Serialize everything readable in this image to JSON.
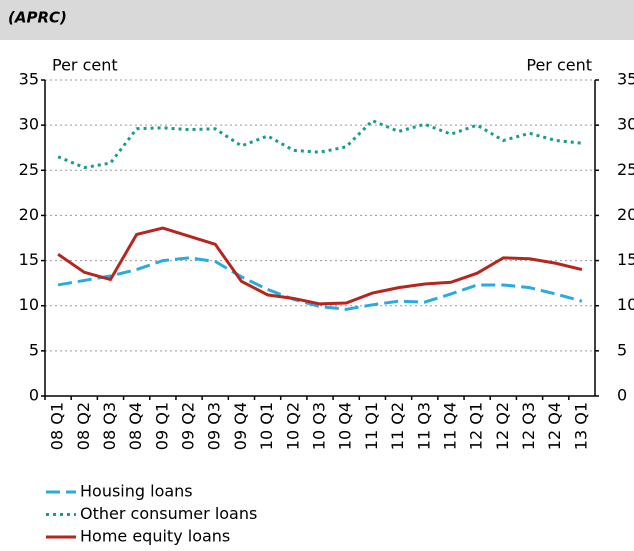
{
  "chart_data": {
    "type": "line",
    "subtitle": "(APRC)",
    "y_label": "Per cent",
    "y2_label": "Per cent",
    "categories": [
      "08 Q1",
      "08 Q2",
      "08 Q3",
      "08 Q4",
      "09 Q1",
      "09 Q2",
      "09 Q3",
      "09 Q4",
      "10 Q1",
      "10 Q2",
      "10 Q3",
      "10 Q4",
      "11 Q1",
      "11 Q2",
      "11 Q3",
      "11 Q4",
      "12 Q1",
      "12 Q2",
      "12 Q3",
      "12 Q4",
      "13 Q1"
    ],
    "series": [
      {
        "name": "Housing loans",
        "color": "#29abe2",
        "dash": "dashed",
        "values": [
          12.3,
          12.8,
          13.3,
          14.0,
          15.0,
          15.3,
          14.9,
          13.2,
          11.8,
          10.7,
          9.9,
          9.6,
          10.1,
          10.5,
          10.4,
          11.3,
          12.3,
          12.3,
          12.0,
          11.3,
          10.5
        ]
      },
      {
        "name": "Other consumer loans",
        "color": "#1a9b8f",
        "dash": "dotted",
        "values": [
          26.5,
          25.3,
          25.8,
          29.6,
          29.7,
          29.5,
          29.6,
          27.7,
          28.8,
          27.2,
          27.0,
          27.6,
          30.5,
          29.3,
          30.1,
          29.0,
          30.0,
          28.3,
          29.1,
          28.3,
          28.0
        ]
      },
      {
        "name": "Home equity loans",
        "color": "#b5261e",
        "dash": "solid",
        "values": [
          15.7,
          13.7,
          12.9,
          17.9,
          18.6,
          17.7,
          16.8,
          12.7,
          11.2,
          10.8,
          10.2,
          10.3,
          11.4,
          12.0,
          12.4,
          12.6,
          13.6,
          15.3,
          15.2,
          14.7,
          14.0
        ]
      }
    ],
    "ylim": [
      0,
      35
    ],
    "yticks": [
      0,
      5,
      10,
      15,
      20,
      25,
      30,
      35
    ],
    "y2lim": [
      0,
      35
    ],
    "y2ticks": [
      0,
      5,
      10,
      15,
      20,
      25,
      30,
      35
    ],
    "grid": true
  }
}
